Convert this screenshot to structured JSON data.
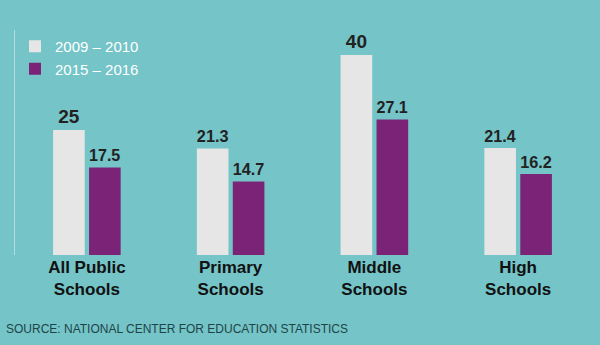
{
  "chart_data": {
    "type": "bar",
    "categories": [
      "All Public Schools",
      "Primary Schools",
      "Middle Schools",
      "High Schools"
    ],
    "series": [
      {
        "name": "2009 – 2010",
        "color": "#e6e6e6",
        "values": [
          25,
          21.3,
          40,
          21.4
        ]
      },
      {
        "name": "2015 – 2016",
        "color": "#7b2477",
        "values": [
          17.5,
          14.7,
          27.1,
          16.2
        ]
      }
    ],
    "ylim": [
      0,
      45
    ],
    "yticks": [],
    "grid": false,
    "legend": "top left",
    "data_labels": true,
    "tick_labels": "x",
    "annotations": [
      "SOURCE: NATIONAL CENTER FOR EDUCATION STATISTICS"
    ]
  }
}
